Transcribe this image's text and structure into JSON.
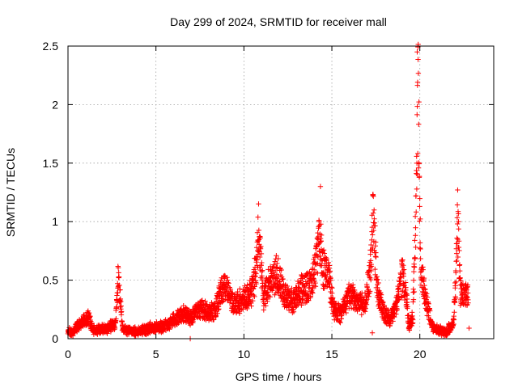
{
  "chart_data": {
    "type": "scatter",
    "title": "Day 299 of 2024, SRMTID for receiver mall",
    "xlabel": "GPS time / hours",
    "ylabel": "SRMTID / TECUs",
    "xlim": [
      0,
      24.2
    ],
    "ylim": [
      0,
      2.5
    ],
    "xticks": [
      0,
      5,
      10,
      15,
      20
    ],
    "yticks": [
      0,
      0.5,
      1,
      1.5,
      2,
      2.5
    ],
    "xtick_labels": [
      "0",
      "5",
      "10",
      "15",
      "20"
    ],
    "ytick_labels": [
      "0",
      "0.5",
      "1",
      "1.5",
      "2",
      "2.5"
    ],
    "grid": true,
    "marker": "plus",
    "series": [
      {
        "name": "SRMTID",
        "color": "#ff0000",
        "anchors_x": [
          0,
          0.3,
          0.6,
          0.8,
          1.0,
          1.2,
          1.4,
          1.8,
          2.2,
          2.5,
          2.7,
          2.85,
          2.95,
          3.1,
          3.4,
          3.8,
          4.2,
          4.6,
          5.0,
          5.4,
          5.8,
          6.2,
          6.6,
          6.95,
          7.2,
          7.6,
          8.0,
          8.4,
          8.7,
          9.0,
          9.3,
          9.6,
          10.0,
          10.4,
          10.7,
          10.85,
          11.1,
          11.5,
          11.9,
          12.3,
          12.8,
          13.3,
          13.8,
          14.0,
          14.3,
          14.5,
          14.8,
          15.1,
          15.5,
          16.0,
          16.5,
          16.9,
          17.2,
          17.35,
          17.6,
          17.9,
          18.3,
          18.7,
          19.0,
          19.2,
          19.4,
          19.6,
          19.75,
          19.9,
          20.05,
          20.3,
          20.7,
          21.1,
          21.5,
          21.9,
          22.05,
          22.15,
          22.3,
          22.6,
          22.75
        ],
        "anchors_y": [
          0.07,
          0.05,
          0.12,
          0.14,
          0.15,
          0.18,
          0.07,
          0.08,
          0.09,
          0.11,
          0.12,
          0.5,
          0.38,
          0.08,
          0.07,
          0.06,
          0.07,
          0.09,
          0.1,
          0.1,
          0.13,
          0.18,
          0.22,
          0.17,
          0.22,
          0.25,
          0.22,
          0.25,
          0.4,
          0.45,
          0.3,
          0.3,
          0.35,
          0.38,
          0.6,
          0.95,
          0.35,
          0.5,
          0.55,
          0.38,
          0.32,
          0.42,
          0.45,
          0.55,
          0.9,
          0.6,
          0.55,
          0.25,
          0.2,
          0.38,
          0.3,
          0.3,
          0.6,
          1.05,
          0.4,
          0.25,
          0.15,
          0.3,
          0.55,
          0.38,
          0.1,
          0.18,
          0.9,
          2.1,
          0.6,
          0.38,
          0.1,
          0.07,
          0.06,
          0.12,
          0.5,
          1.05,
          0.4,
          0.35,
          0.4
        ],
        "additional_points": [
          [
            6.95,
            0.0
          ],
          [
            22.8,
            0.09
          ],
          [
            17.3,
            0.05
          ],
          [
            14.35,
            1.3
          ],
          [
            19.85,
            2.45
          ]
        ],
        "samples_per_hour": 120
      }
    ]
  }
}
